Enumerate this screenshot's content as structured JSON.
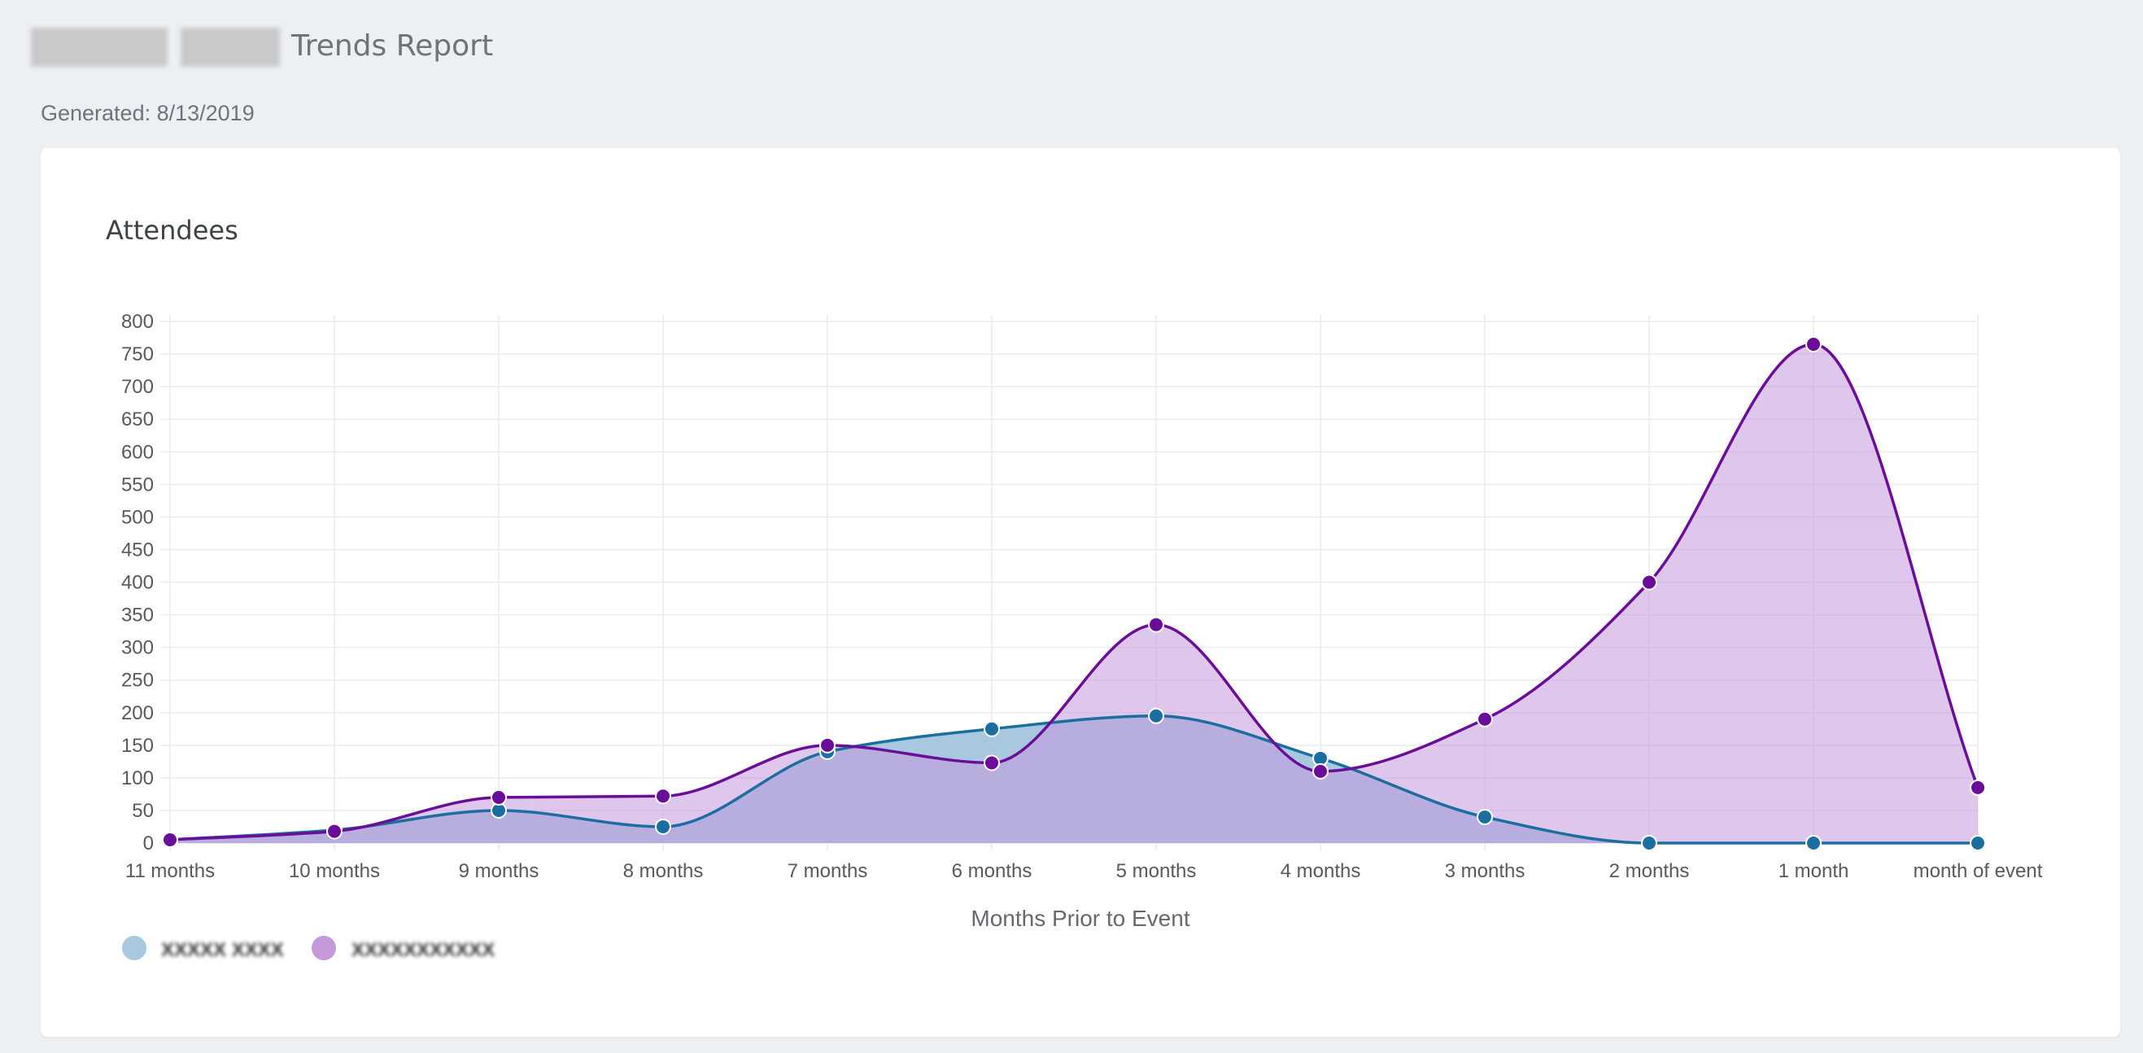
{
  "header": {
    "title_suffix": "Trends Report",
    "generated": "Generated: 8/13/2019"
  },
  "colors": {
    "background": "#ecf0f3",
    "card": "#ffffff",
    "series1_line": "#1b6fa0",
    "series1_fill": "#a7c8df",
    "series2_line": "#6a0d99",
    "series2_fill": "#c598dc"
  },
  "chart_data": {
    "type": "area",
    "title": "Attendees",
    "xlabel": "Months Prior to Event",
    "ylabel": "",
    "categories": [
      "11 months",
      "10 months",
      "9 months",
      "8 months",
      "7 months",
      "6 months",
      "5 months",
      "4 months",
      "3 months",
      "2 months",
      "1 month",
      "month of event"
    ],
    "yticks": [
      "0",
      "50",
      "100",
      "150",
      "200",
      "250",
      "300",
      "350",
      "400",
      "450",
      "500",
      "550",
      "600",
      "650",
      "700",
      "750",
      "800"
    ],
    "ylim": [
      0,
      800
    ],
    "grid": true,
    "legend_position": "bottom-left",
    "series": [
      {
        "name": "",
        "color": "#1b6fa0",
        "fill": "#a7c8df",
        "values": [
          5,
          20,
          50,
          25,
          140,
          175,
          195,
          130,
          40,
          0,
          0,
          0
        ]
      },
      {
        "name": "",
        "color": "#6a0d99",
        "fill": "#c598dc",
        "values": [
          5,
          18,
          70,
          72,
          150,
          123,
          335,
          110,
          190,
          400,
          765,
          85
        ]
      }
    ]
  }
}
